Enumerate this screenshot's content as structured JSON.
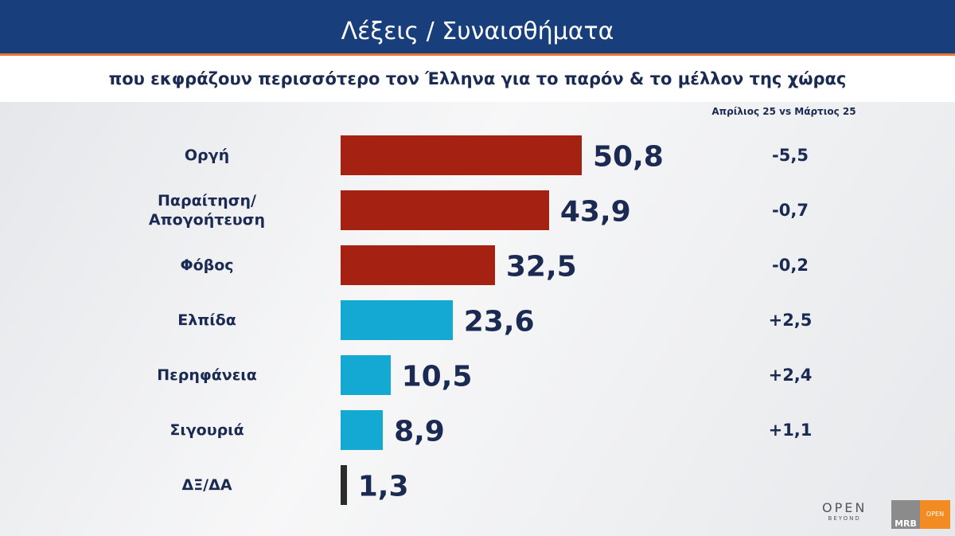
{
  "chart_data": {
    "type": "bar",
    "orientation": "horizontal",
    "title": "Λέξεις / Συναισθήματα",
    "subtitle": "που εκφράζουν περισσότερο τον Έλληνα για το παρόν & το μέλλον της χώρας",
    "change_header": "Απρίλιος 25 vs Μάρτιος 25",
    "categories": [
      "Οργή",
      "Παραίτηση/\nΑπογοήτευση",
      "Φόβος",
      "Ελπίδα",
      "Περηφάνεια",
      "Σιγουριά",
      "ΔΞ/ΔΑ"
    ],
    "values": [
      50.8,
      43.9,
      32.5,
      23.6,
      10.5,
      8.9,
      1.3
    ],
    "value_labels": [
      "50,8",
      "43,9",
      "32,5",
      "23,6",
      "10,5",
      "8,9",
      "1,3"
    ],
    "colors": [
      "#a52213",
      "#a52213",
      "#a52213",
      "#14a9d2",
      "#14a9d2",
      "#14a9d2",
      "#2b2b2b"
    ],
    "change_labels": [
      "-5,5",
      "-0,7",
      "-0,2",
      "+2,5",
      "+2,4",
      "+1,1",
      null
    ]
  },
  "logos": {
    "open": "OPEN",
    "beyond": "BEYOND",
    "mrb": "MRB",
    "open_small": "OPEN"
  }
}
